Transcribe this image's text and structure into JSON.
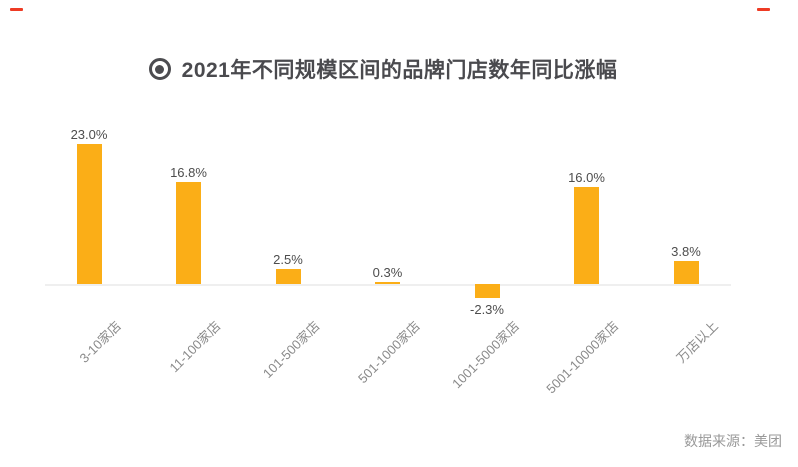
{
  "title": {
    "icon": "bullseye-icon",
    "text": "2021年不同规模区间的品牌门店数年同比涨幅"
  },
  "footer": {
    "source_label": "数据来源：美团"
  },
  "colors": {
    "bar": "#fbae17",
    "title_text": "#4a4a4e",
    "value_label": "#4d4d4d",
    "category_label": "#8a8a8a",
    "axis_line": "#efefef",
    "source_text": "#999999",
    "corner_mark": "#ee3b24"
  },
  "chart_data": {
    "type": "bar",
    "title": "2021年不同规模区间的品牌门店数年同比涨幅",
    "categories": [
      "3-10家店",
      "11-100家店",
      "101-500家店",
      "501-1000家店",
      "1001-5000家店",
      "5001-10000家店",
      "万店以上"
    ],
    "values": [
      23.0,
      16.8,
      2.5,
      0.3,
      -2.3,
      16.0,
      3.8
    ],
    "value_labels": [
      "23.0%",
      "16.8%",
      "2.5%",
      "0.3%",
      "-2.3%",
      "16.0%",
      "3.8%"
    ],
    "xlabel": "",
    "ylabel": "",
    "ylim": [
      -4,
      25
    ],
    "grid": false,
    "legend": false,
    "bar_color": "#fbae17",
    "source": "数据来源：美团"
  }
}
